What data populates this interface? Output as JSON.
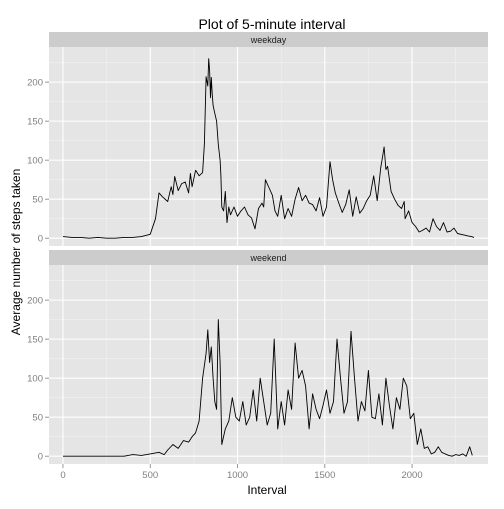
{
  "chart_data": {
    "type": "line",
    "title": "Plot of 5-minute interval",
    "xlabel": "Interval",
    "ylabel": "Average number of steps taken",
    "xlim": [
      -80,
      2435
    ],
    "ylim": [
      -10,
      245
    ],
    "x_ticks": [
      0,
      500,
      1000,
      1500,
      2000
    ],
    "y_ticks": [
      0,
      50,
      100,
      150,
      200
    ],
    "x_tick_labels": [
      "0",
      "500",
      "1000",
      "1500",
      "2000"
    ],
    "y_tick_labels": [
      "0",
      "50",
      "100",
      "150",
      "200"
    ],
    "grid": true,
    "colors": {
      "panel_bg": "#e5e5e5",
      "strip_bg": "#cccccc",
      "grid_major": "#ffffff",
      "grid_minor": "#f2f2f2",
      "line": "#000000",
      "axis_text": "#7f7f7f"
    },
    "panels": [
      {
        "name": "weekday",
        "x": [
          0,
          50,
          100,
          150,
          200,
          250,
          300,
          350,
          400,
          450,
          500,
          530,
          550,
          570,
          600,
          620,
          630,
          640,
          660,
          680,
          700,
          720,
          730,
          740,
          760,
          780,
          800,
          810,
          820,
          830,
          835,
          840,
          845,
          850,
          855,
          860,
          870,
          880,
          890,
          900,
          905,
          910,
          920,
          930,
          940,
          950,
          960,
          980,
          1000,
          1020,
          1040,
          1060,
          1080,
          1100,
          1120,
          1140,
          1150,
          1160,
          1180,
          1200,
          1215,
          1230,
          1250,
          1270,
          1290,
          1310,
          1330,
          1350,
          1370,
          1390,
          1410,
          1430,
          1450,
          1470,
          1490,
          1510,
          1530,
          1545,
          1560,
          1580,
          1600,
          1620,
          1640,
          1660,
          1680,
          1700,
          1720,
          1740,
          1760,
          1780,
          1800,
          1820,
          1830,
          1840,
          1850,
          1860,
          1880,
          1900,
          1920,
          1940,
          1955,
          1960,
          1980,
          2000,
          2020,
          2040,
          2060,
          2080,
          2100,
          2120,
          2140,
          2160,
          2180,
          2200,
          2220,
          2240,
          2260,
          2280,
          2300,
          2320,
          2340,
          2355
        ],
        "y": [
          2,
          1,
          1,
          0,
          1,
          0,
          0,
          1,
          1,
          2,
          5,
          25,
          58,
          53,
          47,
          66,
          56,
          79,
          61,
          70,
          72,
          58,
          83,
          66,
          87,
          80,
          84,
          121,
          207,
          195,
          230,
          215,
          180,
          206,
          185,
          170,
          160,
          150,
          120,
          100,
          80,
          40,
          35,
          60,
          20,
          40,
          30,
          40,
          28,
          35,
          40,
          30,
          26,
          12,
          38,
          45,
          40,
          75,
          65,
          55,
          35,
          28,
          55,
          25,
          38,
          28,
          50,
          65,
          48,
          55,
          45,
          43,
          35,
          52,
          28,
          40,
          98,
          75,
          58,
          45,
          33,
          43,
          62,
          28,
          53,
          32,
          38,
          48,
          55,
          80,
          48,
          90,
          103,
          117,
          88,
          92,
          60,
          50,
          42,
          38,
          47,
          25,
          35,
          20,
          15,
          8,
          10,
          13,
          8,
          25,
          15,
          10,
          20,
          8,
          9,
          13,
          6,
          5,
          4,
          3,
          2,
          1
        ]
      },
      {
        "name": "weekend",
        "x": [
          0,
          50,
          100,
          150,
          200,
          250,
          300,
          350,
          400,
          450,
          500,
          550,
          580,
          600,
          630,
          660,
          690,
          720,
          740,
          760,
          780,
          800,
          820,
          830,
          840,
          850,
          860,
          870,
          880,
          890,
          900,
          910,
          930,
          950,
          970,
          990,
          1010,
          1030,
          1050,
          1070,
          1090,
          1110,
          1130,
          1150,
          1170,
          1190,
          1210,
          1230,
          1250,
          1270,
          1290,
          1310,
          1330,
          1350,
          1370,
          1390,
          1410,
          1430,
          1450,
          1470,
          1490,
          1510,
          1530,
          1550,
          1570,
          1590,
          1610,
          1630,
          1650,
          1670,
          1690,
          1710,
          1730,
          1750,
          1770,
          1790,
          1810,
          1830,
          1850,
          1870,
          1890,
          1910,
          1930,
          1950,
          1970,
          1990,
          2010,
          2030,
          2050,
          2070,
          2090,
          2110,
          2130,
          2150,
          2170,
          2190,
          2210,
          2230,
          2250,
          2270,
          2290,
          2310,
          2330,
          2345
        ],
        "y": [
          0,
          0,
          0,
          0,
          0,
          0,
          0,
          0,
          2,
          1,
          3,
          5,
          2,
          8,
          15,
          10,
          20,
          18,
          25,
          30,
          45,
          100,
          132,
          162,
          120,
          140,
          100,
          70,
          60,
          175,
          120,
          15,
          35,
          45,
          75,
          50,
          45,
          70,
          40,
          50,
          85,
          45,
          100,
          70,
          40,
          55,
          150,
          35,
          70,
          40,
          85,
          60,
          145,
          100,
          110,
          90,
          35,
          80,
          60,
          48,
          65,
          85,
          55,
          70,
          150,
          100,
          55,
          70,
          160,
          100,
          45,
          70,
          58,
          110,
          50,
          48,
          80,
          40,
          100,
          65,
          35,
          75,
          60,
          100,
          90,
          48,
          55,
          15,
          35,
          10,
          12,
          3,
          5,
          12,
          5,
          3,
          1,
          0,
          2,
          1,
          3,
          0,
          12,
          1
        ]
      }
    ]
  }
}
